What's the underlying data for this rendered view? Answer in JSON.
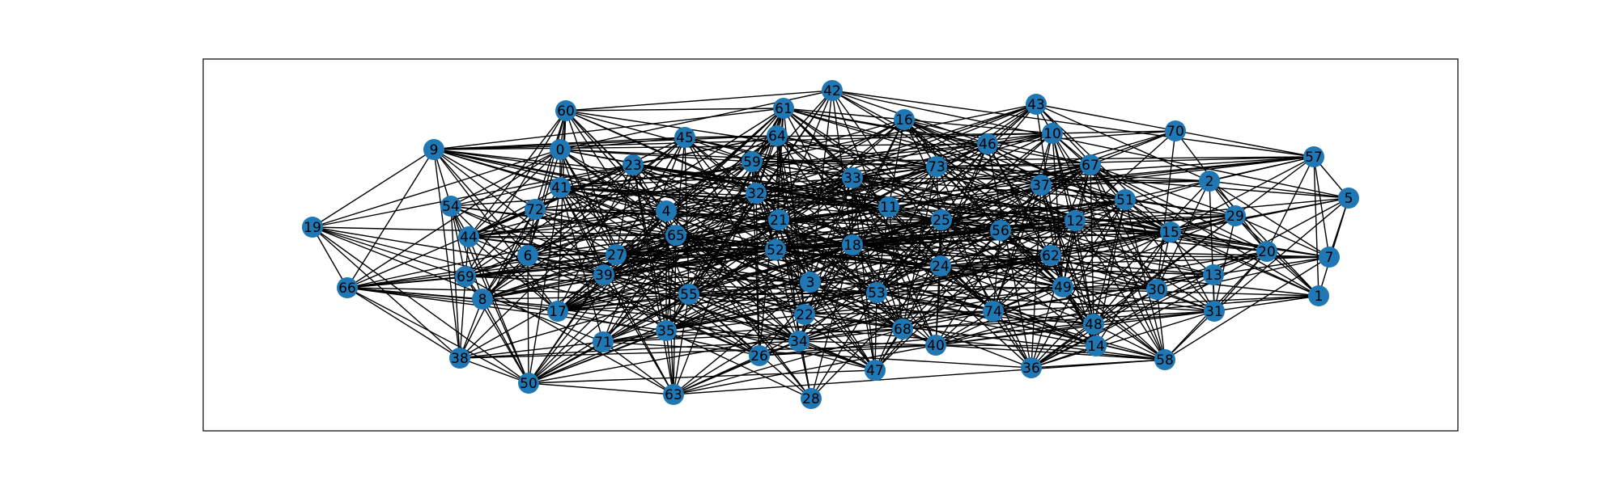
{
  "chart_data": {
    "type": "network",
    "frame": true,
    "node_color": "#1f77b4",
    "edge_color": "#000000",
    "label_color": "#000000",
    "nodes": [
      "0",
      "1",
      "2",
      "3",
      "4",
      "5",
      "6",
      "7",
      "8",
      "9",
      "10",
      "11",
      "12",
      "13",
      "14",
      "15",
      "16",
      "17",
      "18",
      "19",
      "20",
      "21",
      "22",
      "23",
      "24",
      "25",
      "26",
      "27",
      "28",
      "29",
      "30",
      "31",
      "32",
      "33",
      "34",
      "35",
      "36",
      "37",
      "38",
      "39",
      "40",
      "41",
      "42",
      "43",
      "44",
      "45",
      "46",
      "47",
      "48",
      "49",
      "50",
      "51",
      "52",
      "53",
      "54",
      "55",
      "56",
      "57",
      "58",
      "59",
      "60",
      "61",
      "62",
      "63",
      "64",
      "65",
      "66",
      "67",
      "68",
      "69",
      "70",
      "71",
      "72",
      "73",
      "74"
    ]
  }
}
